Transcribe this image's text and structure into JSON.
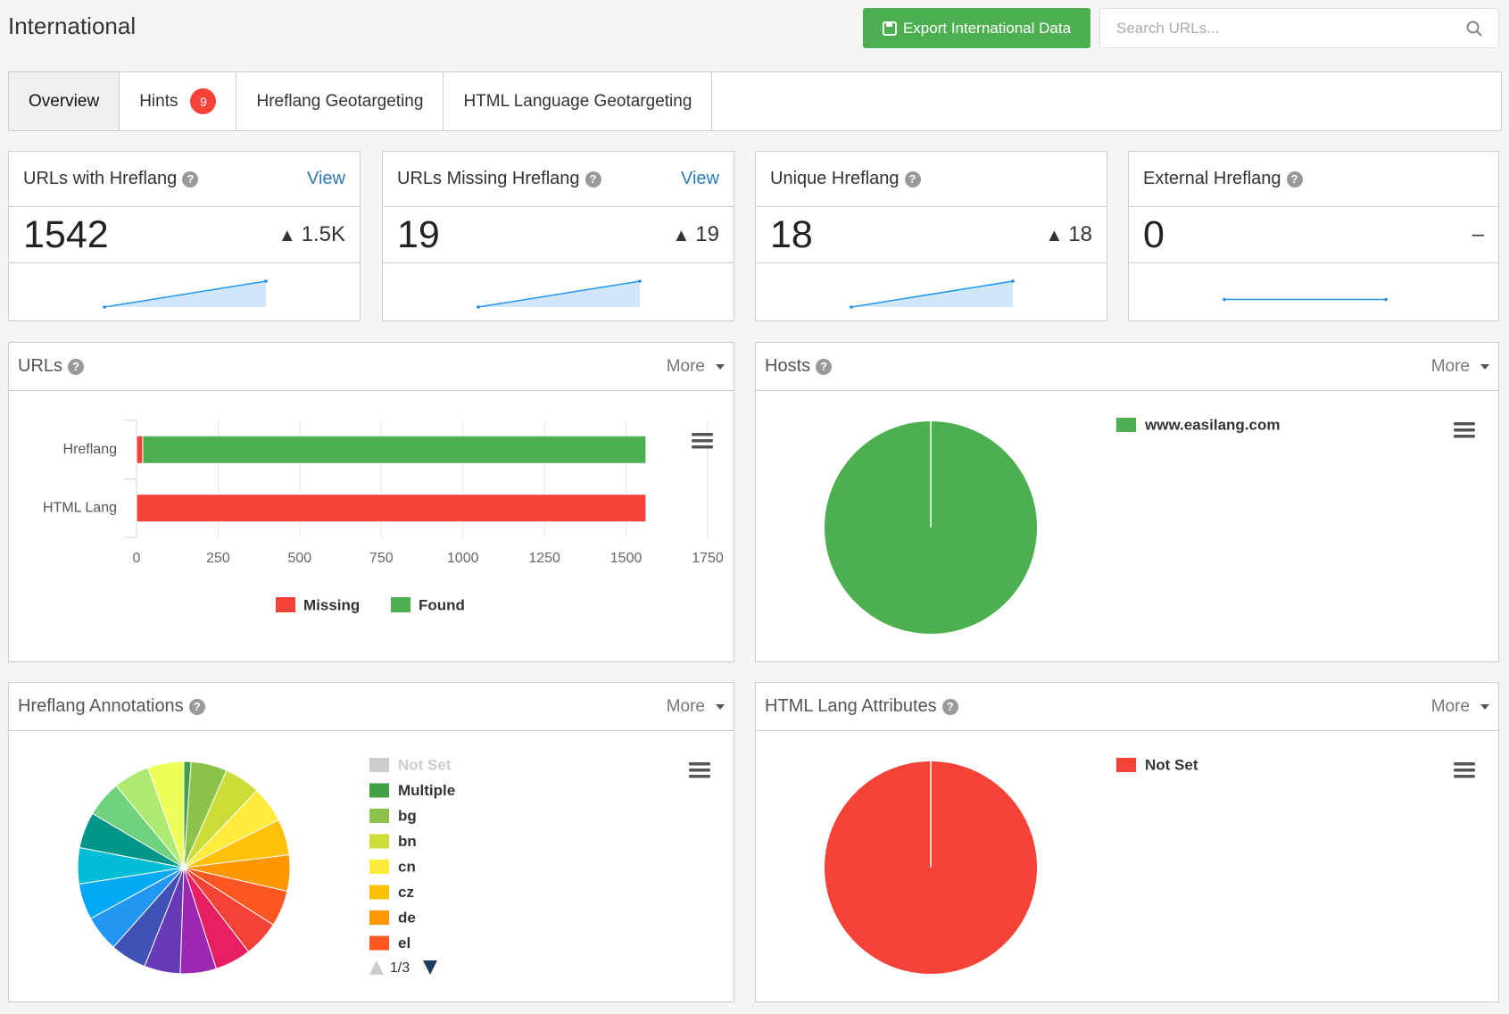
{
  "header": {
    "title": "International",
    "export_button": "Export International Data",
    "search_placeholder": "Search URLs..."
  },
  "tabs": [
    {
      "label": "Overview",
      "active": true
    },
    {
      "label": "Hints",
      "badge": 9
    },
    {
      "label": "Hreflang Geotargeting"
    },
    {
      "label": "HTML Language Geotargeting"
    }
  ],
  "cards": [
    {
      "title": "URLs with Hreflang",
      "link": "View",
      "value": 1542,
      "delta": "1.5K",
      "trend": "up",
      "spark": [
        0,
        1542
      ]
    },
    {
      "title": "URLs Missing Hreflang",
      "link": "View",
      "value": 19,
      "delta": "19",
      "trend": "up",
      "spark": [
        0,
        19
      ]
    },
    {
      "title": "Unique Hreflang",
      "value": 18,
      "delta": "18",
      "trend": "up",
      "spark": [
        0,
        18
      ]
    },
    {
      "title": "External Hreflang",
      "value": 0,
      "delta": "–",
      "trend": "flat",
      "spark": [
        0,
        0
      ]
    }
  ],
  "panels": [
    {
      "title": "URLs",
      "more": "More",
      "chart_data": {
        "type": "bar",
        "orientation": "horizontal",
        "stacked": true,
        "categories": [
          "Hreflang",
          "HTML Lang"
        ],
        "series": [
          {
            "name": "Missing",
            "color": "#f44336",
            "values": [
              19,
              1561
            ]
          },
          {
            "name": "Found",
            "color": "#4caf50",
            "values": [
              1542,
              0
            ]
          }
        ],
        "xlim": [
          0,
          1750
        ],
        "xticks": [
          0,
          250,
          500,
          750,
          1000,
          1250,
          1500,
          1750
        ],
        "grid": true,
        "legend": "bottom"
      }
    },
    {
      "title": "Hosts",
      "more": "More",
      "chart_data": {
        "type": "pie",
        "categories": [
          "www.easilang.com"
        ],
        "values": [
          1561
        ],
        "colors": [
          "#4caf50"
        ],
        "legend": "right"
      }
    },
    {
      "title": "Hreflang Annotations",
      "more": "More",
      "chart_data": {
        "type": "pie",
        "categories": [
          "Not Set",
          "Multiple",
          "bg",
          "bn",
          "cn",
          "cz",
          "de",
          "el",
          null,
          null,
          null,
          null,
          null,
          null,
          null,
          null,
          null,
          null,
          null,
          null
        ],
        "values": [
          null,
          1,
          5,
          5,
          5,
          5,
          5,
          5,
          5,
          5,
          5,
          5,
          5,
          5,
          5,
          5,
          5,
          5,
          5,
          5
        ],
        "colors": [
          "#cccccc",
          "#43a047",
          "#8bc34a",
          "#cddc39",
          "#ffeb3b",
          "#ffc107",
          "#ff9800",
          "#ff5722",
          "#f44336",
          "#e91e63",
          "#9c27b0",
          "#673ab7",
          "#3f51b5",
          "#2196f3",
          "#03a9f4",
          "#00bcd4",
          "#009688",
          "#6fd27d",
          "#aeea72",
          "#eeff58"
        ],
        "legend": "right",
        "legend_page": "1/3"
      }
    },
    {
      "title": "HTML Lang Attributes",
      "more": "More",
      "chart_data": {
        "type": "pie",
        "categories": [
          "Not Set"
        ],
        "values": [
          1561
        ],
        "colors": [
          "#f44336"
        ],
        "legend": "right"
      }
    }
  ]
}
